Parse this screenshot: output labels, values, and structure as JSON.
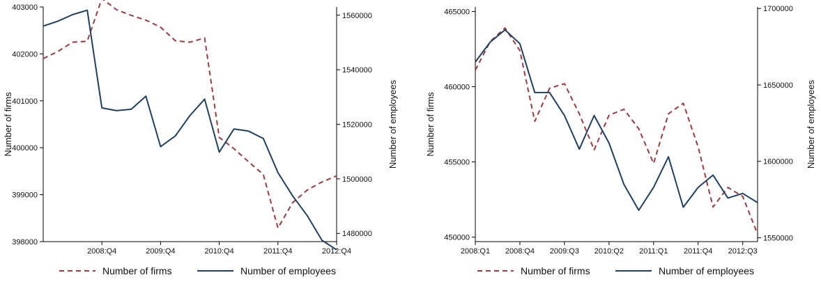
{
  "colors": {
    "firms": "#9b3a3f",
    "employees": "#1f3f5f",
    "axis": "#000000"
  },
  "chart_data": [
    {
      "type": "line",
      "title": "",
      "xlabel": "",
      "ylabel": "Number of firms",
      "y2label": "Number of employees",
      "x_tick_labels": [
        "2008:Q4",
        "2009:Q4",
        "2010:Q4",
        "2011:Q4",
        "2012:Q4"
      ],
      "x_tick_index": [
        4,
        8,
        12,
        16,
        20
      ],
      "x_index_range": [
        0,
        20
      ],
      "ylim": [
        398000,
        403000
      ],
      "y_ticks": [
        398000,
        399000,
        400000,
        401000,
        402000,
        403000
      ],
      "y_tick_labels": [
        "398000",
        "399000",
        "400000",
        "401000",
        "402000",
        "403000"
      ],
      "y2lim": [
        1477000,
        1563000
      ],
      "y2_ticks": [
        1480000,
        1500000,
        1520000,
        1540000,
        1560000
      ],
      "y2_tick_labels": [
        "1480000",
        "1500000",
        "1520000",
        "1540000",
        "1560000"
      ],
      "grid": false,
      "legend_position": "bottom",
      "series": [
        {
          "name": "Number of firms",
          "axis": "left",
          "style": "dashed",
          "x": [
            0,
            1,
            2,
            3,
            4,
            5,
            6,
            7,
            8,
            9,
            10,
            11,
            12,
            13,
            14,
            15,
            16,
            17,
            18,
            19,
            20
          ],
          "values": [
            401900,
            402050,
            402250,
            402270,
            403180,
            402940,
            402820,
            402720,
            402570,
            402280,
            402250,
            402340,
            400220,
            399980,
            399700,
            399430,
            398290,
            398830,
            399100,
            399270,
            399400
          ]
        },
        {
          "name": "Number of employees",
          "axis": "right",
          "style": "solid",
          "x": [
            0,
            1,
            2,
            3,
            4,
            5,
            6,
            7,
            8,
            9,
            10,
            11,
            12,
            13,
            14,
            15,
            16,
            17,
            18,
            19,
            20
          ],
          "values": [
            1556000,
            1557800,
            1560200,
            1561800,
            1526000,
            1525000,
            1525500,
            1530300,
            1511800,
            1515700,
            1523200,
            1529200,
            1509800,
            1518300,
            1517500,
            1514800,
            1502300,
            1493800,
            1486500,
            1477500,
            1474000
          ]
        }
      ]
    },
    {
      "type": "line",
      "title": "",
      "xlabel": "",
      "ylabel": "Number of firms",
      "y2label": "Number of employees",
      "x_tick_labels": [
        "2008:Q1",
        "2008:Q4",
        "2009:Q3",
        "2010:Q2",
        "2011:Q1",
        "2011:Q4",
        "2012:Q3"
      ],
      "x_tick_index": [
        0,
        3,
        6,
        9,
        12,
        15,
        18
      ],
      "x_index_range": [
        0,
        19
      ],
      "ylim": [
        449700,
        465300
      ],
      "y_ticks": [
        450000,
        455000,
        460000,
        465000
      ],
      "y_tick_labels": [
        "450000",
        "455000",
        "460000",
        "465000"
      ],
      "y2lim": [
        1547500,
        1701000
      ],
      "y2_ticks": [
        1550000,
        1600000,
        1650000,
        1700000
      ],
      "y2_tick_labels": [
        "1550000",
        "1600000",
        "1650000",
        "1700000"
      ],
      "grid": false,
      "legend_position": "bottom",
      "series": [
        {
          "name": "Number of firms",
          "axis": "left",
          "style": "dashed",
          "x": [
            0,
            1,
            2,
            3,
            4,
            5,
            6,
            7,
            8,
            9,
            10,
            11,
            12,
            13,
            14,
            15,
            16,
            17,
            18,
            19
          ],
          "values": [
            461100,
            463000,
            463900,
            462400,
            457700,
            459900,
            460200,
            458200,
            455800,
            458100,
            458500,
            457200,
            454900,
            458200,
            458900,
            456000,
            452000,
            453300,
            452700,
            450200
          ]
        },
        {
          "name": "Number of employees",
          "axis": "right",
          "style": "solid",
          "x": [
            0,
            1,
            2,
            3,
            4,
            5,
            6,
            7,
            8,
            9,
            10,
            11,
            12,
            13,
            14,
            15,
            16,
            17,
            18,
            19
          ],
          "values": [
            1665000,
            1678000,
            1686000,
            1677000,
            1645000,
            1645000,
            1630000,
            1608000,
            1630000,
            1612000,
            1585000,
            1568000,
            1583000,
            1603000,
            1570000,
            1583000,
            1591000,
            1576000,
            1579000,
            1573000
          ]
        }
      ]
    }
  ]
}
